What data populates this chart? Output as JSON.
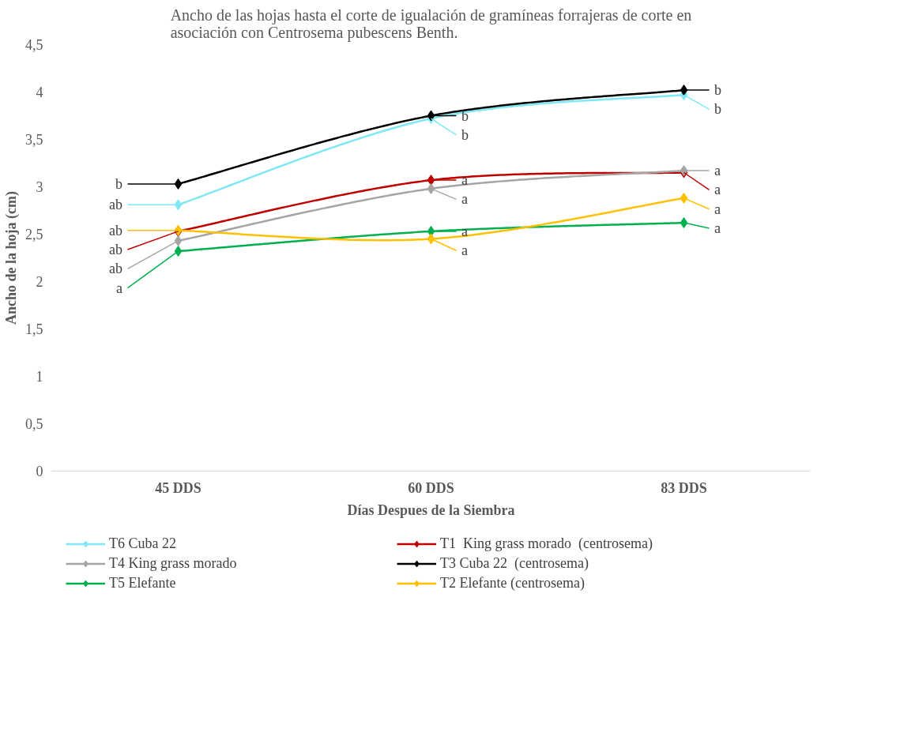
{
  "chart_data": {
    "type": "line",
    "title": "Ancho de las hojas hasta el corte de igualación de gramíneas forrajeras de corte en asociación con Centrosema pubescens Benth.",
    "xlabel": "Días Despues de la Siembra",
    "ylabel": "Ancho de la hoja (cm)",
    "categories": [
      "45 DDS",
      "60 DDS",
      "83 DDS"
    ],
    "ylim": [
      0,
      4.5
    ],
    "yticks": [
      0,
      {
        "value": 0.5,
        "label": "0,5"
      },
      1,
      {
        "value": 1.5,
        "label": "1,5"
      },
      2,
      {
        "value": 2.5,
        "label": "2,5"
      },
      3,
      {
        "value": 3.5,
        "label": "3,5"
      },
      4,
      {
        "value": 4.5,
        "label": "4,5"
      }
    ],
    "grid": false,
    "legend": "bottom",
    "marker": "diamond",
    "line_style": "solid",
    "series": [
      {
        "name": "T6 Cuba 22",
        "color": "#7ee8f5",
        "values": [
          2.81,
          3.72,
          3.97
        ],
        "value_labels": [
          "ab",
          "b",
          "b"
        ]
      },
      {
        "name": "T1  King grass morado  (centrosema)",
        "color": "#c00000",
        "values": [
          2.53,
          3.07,
          3.15
        ],
        "value_labels": [
          "ab",
          "a",
          "a"
        ]
      },
      {
        "name": "T4 King grass morado",
        "color": "#a5a5a5",
        "values": [
          2.43,
          2.98,
          3.17
        ],
        "value_labels": [
          "ab",
          "a",
          "a"
        ]
      },
      {
        "name": "T3 Cuba 22  (centrosema)",
        "color": "#000000",
        "values": [
          3.03,
          3.75,
          4.02
        ],
        "value_labels": [
          "b",
          "b",
          "b"
        ]
      },
      {
        "name": "T5 Elefante",
        "color": "#00b050",
        "values": [
          2.32,
          2.53,
          2.62
        ],
        "value_labels": [
          "a",
          "a",
          "a"
        ]
      },
      {
        "name": "T2 Elefante (centrosema)",
        "color": "#ffc000",
        "values": [
          2.54,
          2.45,
          2.88
        ],
        "value_labels": [
          "ab",
          "a",
          "a"
        ]
      }
    ]
  }
}
